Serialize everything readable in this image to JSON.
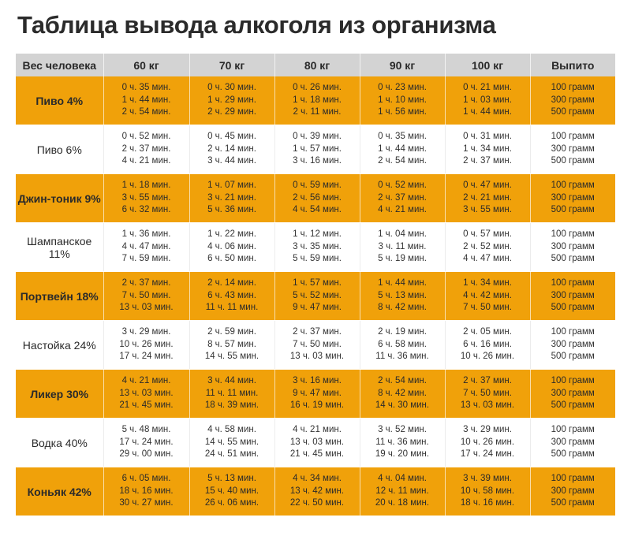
{
  "title": "Таблица вывода алкоголя из организма",
  "header": [
    "Вес человека",
    "60 кг",
    "70 кг",
    "80 кг",
    "90 кг",
    "100 кг",
    "Выпито"
  ],
  "amounts": [
    "100 грамм",
    "300 грамм",
    "500 грамм"
  ],
  "colors": {
    "accent": "#f0a10a",
    "header_bg": "#d3d3d3"
  },
  "rows": [
    {
      "drink": "Пиво 4%",
      "style": "orange",
      "cols": [
        [
          "0 ч. 35 мин.",
          "1 ч. 44 мин.",
          "2 ч. 54 мин."
        ],
        [
          "0 ч. 30 мин.",
          "1 ч. 29 мин.",
          "2 ч. 29 мин."
        ],
        [
          "0 ч. 26 мин.",
          "1 ч. 18 мин.",
          "2 ч. 11 мин."
        ],
        [
          "0 ч. 23 мин.",
          "1 ч. 10 мин.",
          "1 ч. 56 мин."
        ],
        [
          "0 ч. 21 мин.",
          "1 ч. 03 мин.",
          "1 ч. 44 мин."
        ]
      ]
    },
    {
      "drink": "Пиво 6%",
      "style": "white",
      "cols": [
        [
          "0 ч. 52 мин.",
          "2 ч. 37 мин.",
          "4 ч. 21 мин."
        ],
        [
          "0 ч. 45 мин.",
          "2 ч. 14 мин.",
          "3 ч. 44 мин."
        ],
        [
          "0 ч. 39 мин.",
          "1 ч. 57 мин.",
          "3 ч. 16 мин."
        ],
        [
          "0 ч. 35 мин.",
          "1 ч. 44 мин.",
          "2 ч. 54 мин."
        ],
        [
          "0 ч. 31 мин.",
          "1 ч. 34 мин.",
          "2 ч. 37 мин."
        ]
      ]
    },
    {
      "drink": "Джин-тоник 9%",
      "style": "orange",
      "cols": [
        [
          "1 ч. 18 мин.",
          "3 ч. 55 мин.",
          "6 ч. 32 мин."
        ],
        [
          "1 ч. 07 мин.",
          "3 ч. 21 мин.",
          "5 ч. 36 мин."
        ],
        [
          "0 ч. 59 мин.",
          "2 ч. 56 мин.",
          "4 ч. 54 мин."
        ],
        [
          "0 ч. 52 мин.",
          "2 ч. 37 мин.",
          "4 ч. 21 мин."
        ],
        [
          "0 ч. 47 мин.",
          "2 ч. 21 мин.",
          "3 ч. 55 мин."
        ]
      ]
    },
    {
      "drink": "Шампанское 11%",
      "style": "white",
      "cols": [
        [
          "1 ч. 36 мин.",
          "4 ч. 47 мин.",
          "7 ч. 59 мин."
        ],
        [
          "1 ч. 22 мин.",
          "4 ч. 06 мин.",
          "6 ч. 50 мин."
        ],
        [
          "1 ч. 12 мин.",
          "3 ч. 35 мин.",
          "5 ч. 59 мин."
        ],
        [
          "1 ч. 04 мин.",
          "3 ч. 11 мин.",
          "5 ч. 19 мин."
        ],
        [
          "0 ч. 57 мин.",
          "2 ч. 52 мин.",
          "4 ч. 47 мин."
        ]
      ]
    },
    {
      "drink": "Портвейн 18%",
      "style": "orange",
      "cols": [
        [
          "2 ч. 37 мин.",
          "7 ч. 50 мин.",
          "13 ч. 03 мин."
        ],
        [
          "2 ч. 14 мин.",
          "6 ч. 43 мин.",
          "11 ч. 11 мин."
        ],
        [
          "1 ч. 57 мин.",
          "5 ч. 52 мин.",
          "9 ч. 47 мин."
        ],
        [
          "1 ч. 44 мин.",
          "5 ч. 13 мин.",
          "8 ч. 42 мин."
        ],
        [
          "1 ч. 34 мин.",
          "4 ч. 42 мин.",
          "7 ч. 50 мин."
        ]
      ]
    },
    {
      "drink": "Настойка 24%",
      "style": "white",
      "cols": [
        [
          "3 ч. 29 мин.",
          "10 ч. 26 мин.",
          "17 ч. 24 мин."
        ],
        [
          "2 ч. 59 мин.",
          "8 ч. 57 мин.",
          "14 ч. 55 мин."
        ],
        [
          "2 ч. 37 мин.",
          "7 ч. 50 мин.",
          "13 ч. 03 мин."
        ],
        [
          "2 ч. 19 мин.",
          "6 ч. 58 мин.",
          "11 ч. 36 мин."
        ],
        [
          "2 ч. 05 мин.",
          "6 ч. 16 мин.",
          "10 ч. 26 мин."
        ]
      ]
    },
    {
      "drink": "Ликер 30%",
      "style": "orange",
      "cols": [
        [
          "4 ч. 21 мин.",
          "13 ч. 03 мин.",
          "21 ч. 45 мин."
        ],
        [
          "3 ч. 44 мин.",
          "11 ч. 11 мин.",
          "18 ч. 39 мин."
        ],
        [
          "3 ч. 16 мин.",
          "9 ч. 47 мин.",
          "16 ч. 19 мин."
        ],
        [
          "2 ч. 54 мин.",
          "8 ч. 42 мин.",
          "14 ч. 30 мин."
        ],
        [
          "2 ч. 37 мин.",
          "7 ч. 50 мин.",
          "13 ч. 03 мин."
        ]
      ]
    },
    {
      "drink": "Водка 40%",
      "style": "white",
      "cols": [
        [
          "5 ч. 48 мин.",
          "17 ч. 24 мин.",
          "29 ч. 00 мин."
        ],
        [
          "4 ч. 58 мин.",
          "14 ч. 55 мин.",
          "24 ч. 51 мин."
        ],
        [
          "4 ч. 21 мин.",
          "13 ч. 03 мин.",
          "21 ч. 45 мин."
        ],
        [
          "3 ч. 52 мин.",
          "11 ч. 36 мин.",
          "19 ч. 20 мин."
        ],
        [
          "3 ч. 29 мин.",
          "10 ч. 26 мин.",
          "17 ч. 24 мин."
        ]
      ]
    },
    {
      "drink": "Коньяк 42%",
      "style": "orange",
      "cols": [
        [
          "6 ч. 05 мин.",
          "18 ч. 16 мин.",
          "30 ч. 27 мин."
        ],
        [
          "5 ч. 13 мин.",
          "15 ч. 40 мин.",
          "26 ч. 06 мин."
        ],
        [
          "4 ч. 34 мин.",
          "13 ч. 42 мин.",
          "22 ч. 50 мин."
        ],
        [
          "4 ч. 04 мин.",
          "12 ч. 11 мин.",
          "20 ч. 18 мин."
        ],
        [
          "3 ч. 39 мин.",
          "10 ч. 58 мин.",
          "18 ч. 16 мин."
        ]
      ]
    }
  ]
}
